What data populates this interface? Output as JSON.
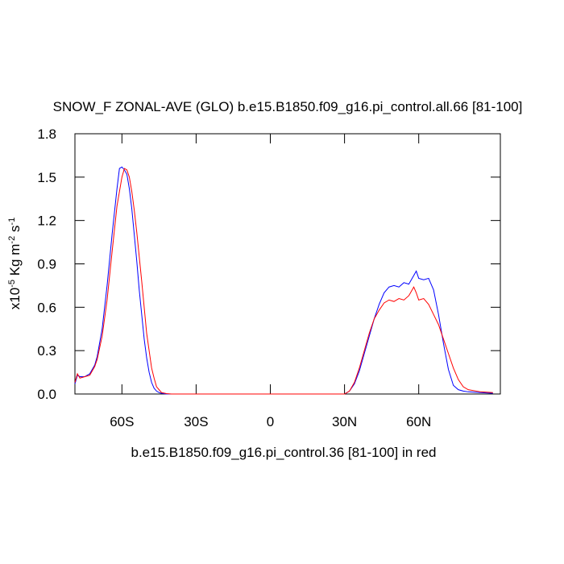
{
  "chart_data": {
    "type": "line",
    "title": "SNOW_F ZONAL-AVE (GLO) b.e15.B1850.f09_g16.pi_control.all.66 [81-100]",
    "xlabel": "b.e15.B1850.f09_g16.pi_control.36 [81-100] in red",
    "ylabel": [
      {
        "text": "x10"
      },
      {
        "text": "-5",
        "sup": true
      },
      {
        "text": " Kg m"
      },
      {
        "text": "-2",
        "sup": true
      },
      {
        "text": " s"
      },
      {
        "text": "-1",
        "sup": true
      }
    ],
    "xlim": [
      -79,
      93
    ],
    "ylim": [
      0,
      1.8
    ],
    "xticks": [
      {
        "value": -60,
        "label": "60S"
      },
      {
        "value": -30,
        "label": "30S"
      },
      0,
      {
        "value": 30,
        "label": "30N"
      },
      {
        "value": 60,
        "label": "60N"
      }
    ],
    "yticks": [
      {
        "value": 0,
        "label": "0.0"
      },
      0.3,
      0.6,
      0.9,
      1.2,
      1.5,
      1.8
    ],
    "x": [
      -79,
      -78,
      -77,
      -75,
      -73,
      -71,
      -70,
      -68,
      -66,
      -64,
      -62,
      -61,
      -60,
      -59,
      -58,
      -57,
      -56,
      -55,
      -54,
      -53,
      -52,
      -51,
      -50,
      -49,
      -48,
      -47,
      -46,
      -45,
      -44,
      -42,
      -40,
      -20,
      0,
      20,
      28,
      30,
      32,
      34,
      36,
      38,
      40,
      42,
      44,
      46,
      48,
      50,
      52,
      54,
      56,
      58,
      59,
      60,
      62,
      64,
      66,
      68,
      70,
      72,
      74,
      76,
      78,
      80,
      85,
      90
    ],
    "series": [
      {
        "color": "#0000ff",
        "values": [
          0.07,
          0.13,
          0.12,
          0.12,
          0.14,
          0.2,
          0.26,
          0.45,
          0.75,
          1.1,
          1.42,
          1.56,
          1.57,
          1.55,
          1.52,
          1.42,
          1.28,
          1.1,
          0.92,
          0.72,
          0.55,
          0.38,
          0.25,
          0.15,
          0.08,
          0.04,
          0.02,
          0.01,
          0.005,
          0,
          0,
          0,
          0,
          0,
          0,
          0,
          0.02,
          0.07,
          0.16,
          0.28,
          0.4,
          0.52,
          0.62,
          0.7,
          0.74,
          0.75,
          0.74,
          0.77,
          0.76,
          0.82,
          0.85,
          0.8,
          0.79,
          0.8,
          0.72,
          0.55,
          0.35,
          0.17,
          0.06,
          0.03,
          0.02,
          0.015,
          0.01,
          0.005
        ]
      },
      {
        "color": "#ff0000",
        "values": [
          0.08,
          0.14,
          0.11,
          0.12,
          0.13,
          0.19,
          0.24,
          0.4,
          0.65,
          0.98,
          1.3,
          1.4,
          1.5,
          1.56,
          1.55,
          1.5,
          1.4,
          1.27,
          1.12,
          0.95,
          0.78,
          0.6,
          0.42,
          0.3,
          0.18,
          0.11,
          0.05,
          0.03,
          0.01,
          0.003,
          0,
          0,
          0,
          0,
          0,
          0,
          0.02,
          0.08,
          0.18,
          0.3,
          0.42,
          0.52,
          0.58,
          0.63,
          0.65,
          0.64,
          0.66,
          0.65,
          0.68,
          0.74,
          0.7,
          0.65,
          0.66,
          0.62,
          0.55,
          0.48,
          0.38,
          0.28,
          0.18,
          0.1,
          0.05,
          0.03,
          0.015,
          0.01
        ]
      }
    ]
  }
}
